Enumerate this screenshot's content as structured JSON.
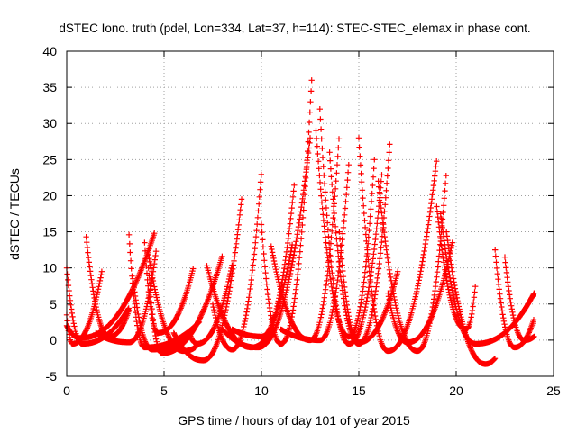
{
  "chart_data": {
    "type": "scatter",
    "title": "dSTEC Iono. truth (pdel, Lon=334, Lat=37, h=114): STEC-STEC_elemax in phase cont.",
    "xlabel": "GPS time / hours of day 101 of year 2015",
    "ylabel": "dSTEC  / TECUs",
    "xlim": [
      0,
      25
    ],
    "ylim": [
      -5,
      40
    ],
    "xticks": [
      0,
      5,
      10,
      15,
      20,
      25
    ],
    "yticks": [
      -5,
      0,
      5,
      10,
      15,
      20,
      25,
      30,
      35,
      40
    ],
    "grid": true,
    "marker": "+",
    "color": "#ff0000",
    "passes": [
      {
        "t0": 0.0,
        "tp": 0.3,
        "t1": 1.8,
        "peak": -0.5,
        "left": 3.5,
        "right": 9.5
      },
      {
        "t0": 0.0,
        "tp": 0.8,
        "t1": 3.2,
        "peak": -0.5,
        "left": 10.0,
        "right": 4.5
      },
      {
        "t0": 0.0,
        "tp": 0.7,
        "t1": 4.5,
        "peak": 0.3,
        "left": 2.0,
        "right": 14.8
      },
      {
        "t0": 1.0,
        "tp": 2.2,
        "t1": 3.2,
        "peak": 0.5,
        "left": 14.3,
        "right": 4.2
      },
      {
        "t0": 1.5,
        "tp": 3.2,
        "t1": 4.6,
        "peak": -0.3,
        "left": 1.0,
        "right": 12.5
      },
      {
        "t0": 3.2,
        "tp": 4.0,
        "t1": 6.8,
        "peak": -1.0,
        "left": 14.6,
        "right": 2.5
      },
      {
        "t0": 3.4,
        "tp": 4.4,
        "t1": 6.2,
        "peak": -1.3,
        "left": 8.5,
        "right": 0.5
      },
      {
        "t0": 4.0,
        "tp": 4.7,
        "t1": 6.5,
        "peak": 1.0,
        "left": 13.5,
        "right": 10.0
      },
      {
        "t0": 4.2,
        "tp": 6.0,
        "t1": 6.6,
        "peak": -1.5,
        "left": 11.8,
        "right": -1.0
      },
      {
        "t0": 4.2,
        "tp": 4.9,
        "t1": 8.0,
        "peak": -1.8,
        "left": 10.0,
        "right": 11.8
      },
      {
        "t0": 5.5,
        "tp": 7.0,
        "t1": 9.0,
        "peak": -2.8,
        "left": 1.0,
        "right": 20.0
      },
      {
        "t0": 6.3,
        "tp": 6.7,
        "t1": 8.5,
        "peak": -0.5,
        "left": 1.0,
        "right": 10.5
      },
      {
        "t0": 7.2,
        "tp": 9.5,
        "t1": 11.6,
        "peak": -1.0,
        "left": 10.3,
        "right": 13.5
      },
      {
        "t0": 7.5,
        "tp": 8.5,
        "t1": 10.0,
        "peak": -1.3,
        "left": 5.0,
        "right": 23.3
      },
      {
        "t0": 8.0,
        "tp": 9.8,
        "t1": 12.5,
        "peak": -1.0,
        "left": 1.5,
        "right": 28.0
      },
      {
        "t0": 8.5,
        "tp": 10.0,
        "t1": 11.7,
        "peak": 0.5,
        "left": 1.5,
        "right": 22.0
      },
      {
        "t0": 10.0,
        "tp": 11.0,
        "t1": 12.6,
        "peak": -0.5,
        "left": 16.0,
        "right": 37.0
      },
      {
        "t0": 10.5,
        "tp": 12.5,
        "t1": 14.0,
        "peak": 0.0,
        "left": 13.0,
        "right": 28.7
      },
      {
        "t0": 11.0,
        "tp": 13.0,
        "t1": 14.5,
        "peak": 0.0,
        "left": 1.5,
        "right": 25.0
      },
      {
        "t0": 12.8,
        "tp": 14.5,
        "t1": 15.8,
        "peak": 0.5,
        "left": 29.0,
        "right": 25.0
      },
      {
        "t0": 13.0,
        "tp": 14.5,
        "t1": 16.2,
        "peak": -0.5,
        "left": 32.0,
        "right": 23.5
      },
      {
        "t0": 13.5,
        "tp": 15.0,
        "t1": 16.6,
        "peak": -0.5,
        "left": 26.0,
        "right": 27.5
      },
      {
        "t0": 14.0,
        "tp": 15.0,
        "t1": 17.0,
        "peak": -0.3,
        "left": 15.0,
        "right": 9.5
      },
      {
        "t0": 15.0,
        "tp": 16.5,
        "t1": 19.0,
        "peak": -1.5,
        "left": 28.0,
        "right": 25.0
      },
      {
        "t0": 16.0,
        "tp": 18.0,
        "t1": 19.5,
        "peak": -1.5,
        "left": 22.0,
        "right": 23.5
      },
      {
        "t0": 16.5,
        "tp": 17.5,
        "t1": 19.8,
        "peak": -0.3,
        "left": 6.5,
        "right": 13.5
      },
      {
        "t0": 19.0,
        "tp": 20.5,
        "t1": 21.0,
        "peak": 1.5,
        "left": 18.5,
        "right": 8.0
      },
      {
        "t0": 19.2,
        "tp": 21.0,
        "t1": 24.0,
        "peak": -0.5,
        "left": 17.5,
        "right": 6.5
      },
      {
        "t0": 19.5,
        "tp": 21.5,
        "t1": 22.0,
        "peak": -3.3,
        "left": 15.0,
        "right": -2.5
      },
      {
        "t0": 22.0,
        "tp": 23.0,
        "t1": 24.0,
        "peak": -1.0,
        "left": 12.5,
        "right": 3.0
      },
      {
        "t0": 22.5,
        "tp": 23.5,
        "t1": 24.0,
        "peak": 0.0,
        "left": 11.5,
        "right": 0.5
      }
    ]
  }
}
